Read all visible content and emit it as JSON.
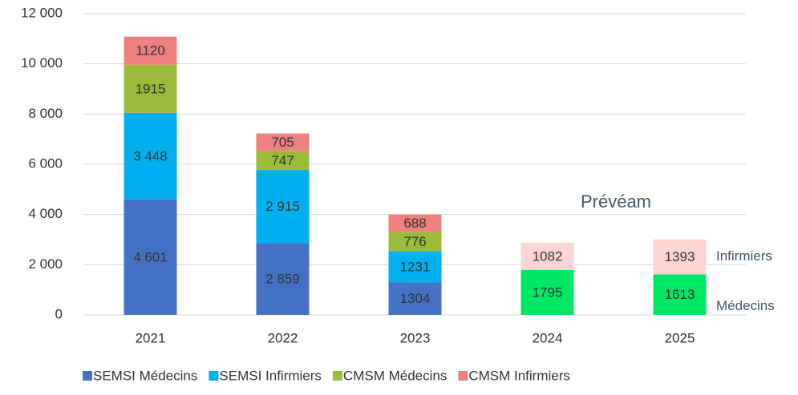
{
  "chart_data": {
    "type": "stacked_bar",
    "categories": [
      "2021",
      "2022",
      "2023",
      "2024",
      "2025"
    ],
    "ylim": [
      0,
      12000
    ],
    "yticks": [
      0,
      {
        "value": 2000,
        "label": "2 000"
      },
      {
        "value": 4000,
        "label": "4 000"
      },
      {
        "value": 6000,
        "label": "6 000"
      },
      {
        "value": 8000,
        "label": "8 000"
      },
      {
        "value": 10000,
        "label": "10 000"
      },
      {
        "value": 12000,
        "label": "12 000"
      }
    ],
    "grid": true,
    "legend": "bottom",
    "series": [
      {
        "name": "SEMSI Médecins",
        "color": "#4472c4",
        "values": [
          4601,
          2859,
          1304,
          null,
          null
        ],
        "value_labels": [
          "4 601",
          "2 859",
          "1304",
          null,
          null
        ]
      },
      {
        "name": "SEMSI Infirmiers",
        "color": "#00b0f0",
        "values": [
          3448,
          2915,
          1231,
          null,
          null
        ],
        "value_labels": [
          "3 448",
          "2 915",
          "1231",
          null,
          null
        ]
      },
      {
        "name": "CMSM Médecins",
        "color": "#9bbb3b",
        "values": [
          1915,
          747,
          776,
          null,
          null
        ]
      },
      {
        "name": "CMSM Infirmiers",
        "color": "#ee8080",
        "values": [
          1120,
          705,
          688,
          null,
          null
        ]
      }
    ],
    "forecast": {
      "title": "Prévéam",
      "series": [
        {
          "name": "Médecins",
          "color": "#00e765",
          "values": [
            null,
            null,
            null,
            1795,
            1613
          ]
        },
        {
          "name": "Infirmiers",
          "color": "#fdd5d5",
          "values": [
            null,
            null,
            null,
            1082,
            1393
          ]
        }
      ]
    }
  }
}
